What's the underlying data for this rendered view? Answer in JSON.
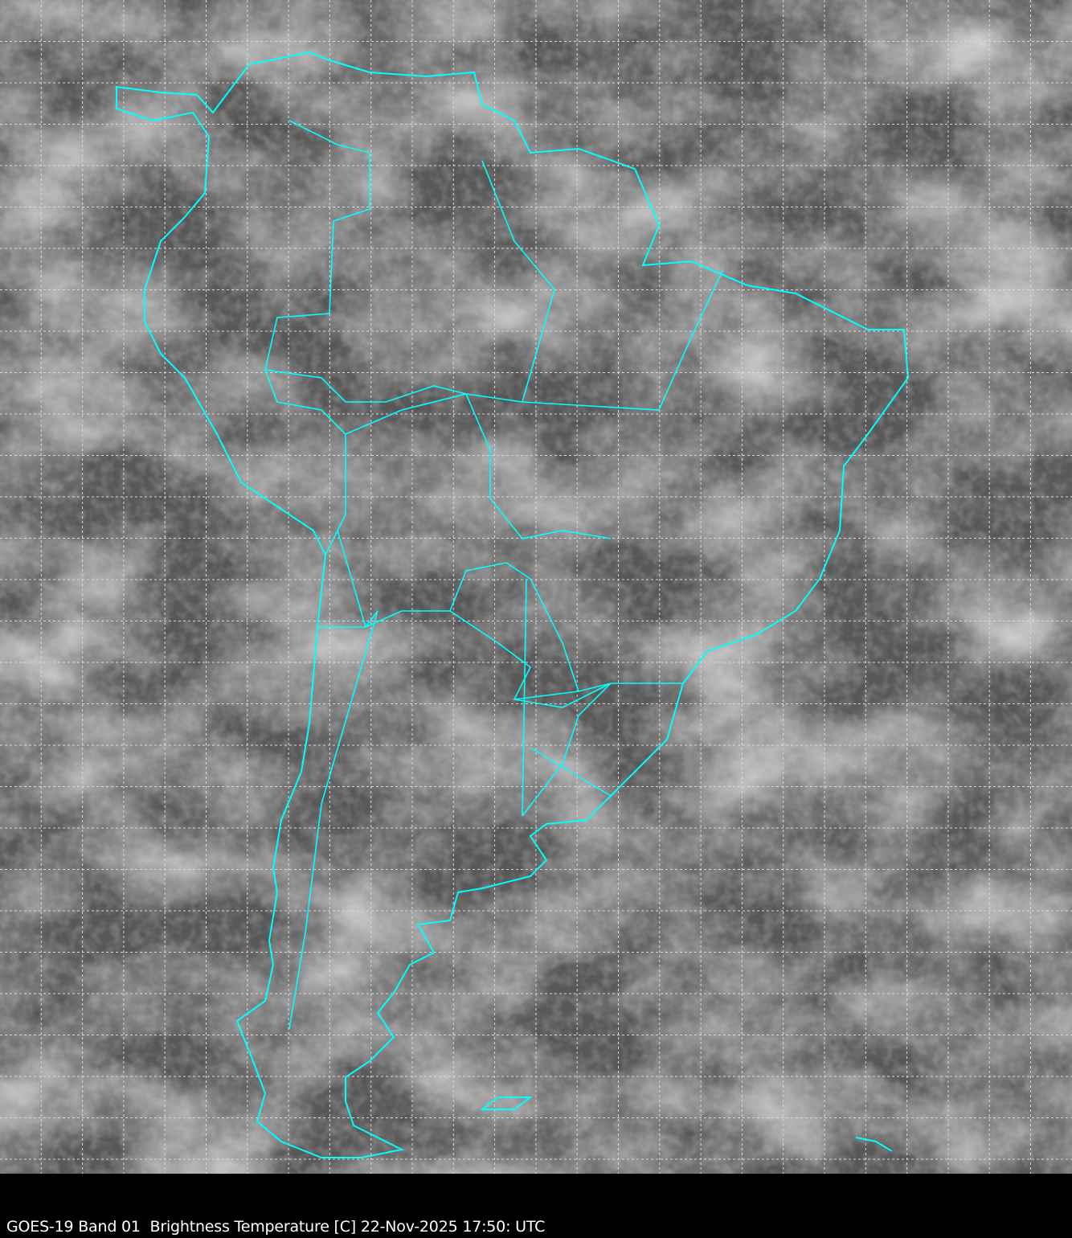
{
  "caption": "GOES-19 Band 01  Brightness Temperature [C] 22-Nov-2025 17:50: UTC",
  "map": {
    "region": "South America",
    "imagery": "grayscale satellite imagery",
    "overlay_color": "#00ffff",
    "grid_color": "#d8d8d8",
    "background_gray": "#5a5a5a"
  }
}
